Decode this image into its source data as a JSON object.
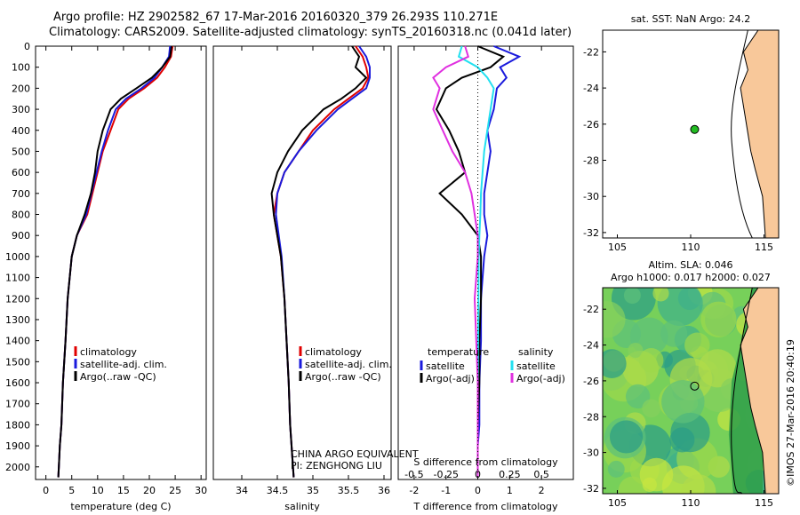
{
  "header": {
    "line1": "Argo profile: HZ 2902582_67 17-Mar-2016 20160320_379 26.293S 110.271E",
    "line2": "Climatology: CARS2009. Satellite-adjusted climatology: synTS_20160318.nc (0.041d later)"
  },
  "colors": {
    "climatology": "#e00000",
    "satellite": "#1a1adc",
    "argo": "#000000",
    "sal_satellite": "#22e0f0",
    "sal_argo": "#e030e0",
    "land": "#f8c89a",
    "marker": "#22bb22"
  },
  "chart_data": [
    {
      "id": "temperature",
      "type": "line",
      "xlabel": "temperature (deg C)",
      "ylabel": "",
      "xlim": [
        -2,
        31
      ],
      "ylim": [
        2060,
        0
      ],
      "y_reversed": true,
      "xticks": [
        0,
        5,
        10,
        15,
        20,
        25,
        30
      ],
      "yticks": [
        0,
        100,
        200,
        300,
        400,
        500,
        600,
        700,
        800,
        900,
        1000,
        1100,
        1200,
        1300,
        1400,
        1500,
        1600,
        1700,
        1800,
        1900,
        2000
      ],
      "legend": [
        "climatology",
        "satellite-adj. clim.",
        "Argo(..raw -QC)"
      ],
      "legend_position": "lower-left",
      "series": [
        {
          "name": "climatology",
          "color": "#e00000",
          "x": [
            24.5,
            24.2,
            23,
            21.5,
            19,
            16,
            14,
            12.5,
            11,
            10,
            9,
            8,
            6,
            5,
            4.2,
            3.8,
            3.3,
            3,
            2.7,
            2.5,
            2.4
          ],
          "y": [
            0,
            50,
            100,
            150,
            200,
            250,
            300,
            400,
            500,
            600,
            700,
            800,
            900,
            1000,
            1200,
            1400,
            1600,
            1800,
            1900,
            2000,
            2050
          ]
        },
        {
          "name": "satellite-adj. clim.",
          "color": "#1a1adc",
          "x": [
            24,
            23.8,
            22.5,
            21,
            18.5,
            15.5,
            13.5,
            12,
            10.8,
            9.8,
            8.8,
            7.8,
            6,
            5,
            4.2,
            3.8,
            3.3,
            3,
            2.7,
            2.5,
            2.4
          ],
          "y": [
            0,
            50,
            100,
            150,
            200,
            250,
            300,
            400,
            500,
            600,
            700,
            800,
            900,
            1000,
            1200,
            1400,
            1600,
            1800,
            1900,
            2000,
            2050
          ]
        },
        {
          "name": "Argo(..raw -QC)",
          "color": "#000000",
          "x": [
            24.3,
            24,
            22.5,
            20.5,
            17.5,
            14.5,
            12.5,
            11,
            10,
            9.5,
            8.7,
            7.5,
            6,
            5,
            4.2,
            3.8,
            3.3,
            3,
            2.7,
            2.5,
            2.4
          ],
          "y": [
            0,
            50,
            100,
            150,
            200,
            250,
            300,
            400,
            500,
            600,
            700,
            800,
            900,
            1000,
            1200,
            1400,
            1600,
            1800,
            1900,
            2000,
            2050
          ]
        }
      ]
    },
    {
      "id": "salinity",
      "type": "line",
      "xlabel": "salinity",
      "ylabel": "",
      "xlim": [
        33.6,
        36.1
      ],
      "ylim": [
        2060,
        0
      ],
      "y_reversed": true,
      "xticks": [
        34,
        34.5,
        35,
        35.5,
        36
      ],
      "legend": [
        "climatology",
        "satellite-adj. clim.",
        "Argo(..raw -QC)"
      ],
      "legend_position": "lower-right",
      "annotations": [
        "CHINA ARGO EQUIVALENT",
        "PI: ZENGHONG LIU"
      ],
      "series": [
        {
          "name": "climatology",
          "color": "#e00000",
          "x": [
            35.6,
            35.7,
            35.75,
            35.78,
            35.7,
            35.5,
            35.3,
            35.0,
            34.8,
            34.6,
            34.5,
            34.45,
            34.5,
            34.55,
            34.6,
            34.63,
            34.66,
            34.68,
            34.7,
            34.72,
            34.73
          ],
          "y": [
            0,
            50,
            100,
            150,
            200,
            250,
            300,
            400,
            500,
            600,
            700,
            800,
            900,
            1000,
            1200,
            1400,
            1600,
            1800,
            1900,
            2000,
            2050
          ]
        },
        {
          "name": "satellite-adj. clim.",
          "color": "#1a1adc",
          "x": [
            35.65,
            35.75,
            35.8,
            35.8,
            35.75,
            35.55,
            35.35,
            35.05,
            34.8,
            34.6,
            34.5,
            34.48,
            34.52,
            34.56,
            34.6,
            34.63,
            34.66,
            34.68,
            34.7,
            34.72,
            34.73
          ],
          "y": [
            0,
            50,
            100,
            150,
            200,
            250,
            300,
            400,
            500,
            600,
            700,
            800,
            900,
            1000,
            1200,
            1400,
            1600,
            1800,
            1900,
            2000,
            2050
          ]
        },
        {
          "name": "Argo(..raw -QC)",
          "color": "#000000",
          "x": [
            35.55,
            35.65,
            35.6,
            35.75,
            35.6,
            35.4,
            35.15,
            34.85,
            34.65,
            34.5,
            34.42,
            34.45,
            34.5,
            34.55,
            34.6,
            34.63,
            34.66,
            34.68,
            34.7,
            34.72,
            34.73
          ],
          "y": [
            0,
            50,
            100,
            150,
            200,
            250,
            300,
            400,
            500,
            600,
            700,
            800,
            900,
            1000,
            1200,
            1400,
            1600,
            1800,
            1900,
            2000,
            2050
          ]
        }
      ]
    },
    {
      "id": "difference",
      "type": "line",
      "xlabel": "T difference from climatology",
      "xlabel_top": "S difference from climatology",
      "xlim": [
        -2.5,
        3
      ],
      "ylim": [
        2060,
        0
      ],
      "y_reversed": true,
      "xticks": [
        -2,
        -1,
        0,
        1,
        2
      ],
      "sticks": [
        -0.5,
        -0.25,
        0,
        0.25,
        0.5
      ],
      "legend_left_title": "temperature",
      "legend_right_title": "salinity",
      "legend_left": [
        "satellite",
        "Argo(-adj)"
      ],
      "legend_right": [
        "satellite",
        "Argo(-adj)"
      ],
      "series": [
        {
          "name": "temperature satellite",
          "color": "#1a1adc",
          "x": [
            0.5,
            1.3,
            0.7,
            0.9,
            0.6,
            0.5,
            0.3,
            0.4,
            0.3,
            0.2,
            0.2,
            0.3,
            0.2,
            0.1,
            0.1,
            0.05,
            0.05,
            0,
            0,
            0
          ],
          "y": [
            0,
            50,
            100,
            150,
            200,
            300,
            400,
            500,
            600,
            700,
            800,
            900,
            1000,
            1200,
            1400,
            1600,
            1800,
            1900,
            2000,
            2050
          ]
        },
        {
          "name": "temperature Argo(-adj)",
          "color": "#000000",
          "x": [
            0,
            0.8,
            0.4,
            -0.5,
            -1,
            -1.3,
            -0.9,
            -0.6,
            -0.4,
            -1.2,
            -0.5,
            0,
            0.1,
            0.1,
            0.05,
            0.05,
            0,
            0,
            0,
            0
          ],
          "y": [
            0,
            50,
            100,
            150,
            200,
            300,
            400,
            500,
            600,
            700,
            800,
            900,
            1000,
            1200,
            1400,
            1600,
            1800,
            1900,
            2000,
            2050
          ]
        },
        {
          "name": "salinity satellite",
          "color": "#22e0f0",
          "x": [
            -0.5,
            -0.6,
            0,
            0.3,
            0.5,
            0.4,
            0.3,
            0.2,
            0.15,
            0.1,
            0.08,
            0.05,
            0.03,
            0.02,
            0.01,
            0,
            0,
            0,
            0,
            0
          ],
          "y": [
            0,
            50,
            100,
            150,
            200,
            300,
            400,
            500,
            600,
            700,
            800,
            900,
            1000,
            1200,
            1400,
            1600,
            1800,
            1900,
            2000,
            2050
          ]
        },
        {
          "name": "salinity Argo(-adj)",
          "color": "#e030e0",
          "x": [
            -0.4,
            -0.3,
            -1.0,
            -1.4,
            -1.2,
            -1.4,
            -1.1,
            -0.8,
            -0.4,
            -0.2,
            -0.1,
            0,
            0,
            -0.1,
            -0.05,
            0,
            0,
            0,
            0,
            0
          ],
          "y": [
            0,
            50,
            100,
            150,
            200,
            300,
            400,
            500,
            600,
            700,
            800,
            900,
            1000,
            1200,
            1400,
            1600,
            1800,
            1900,
            2000,
            2050
          ]
        }
      ]
    },
    {
      "id": "sst_map",
      "type": "map",
      "title": "sat. SST: NaN Argo: 24.2",
      "xlim": [
        104,
        116
      ],
      "ylim": [
        -32.3,
        -20.8
      ],
      "xticks": [
        105,
        110,
        115
      ],
      "yticks": [
        -22,
        -24,
        -26,
        -28,
        -30,
        -32
      ],
      "point": {
        "x": 110.271,
        "y": -26.293
      }
    },
    {
      "id": "sla_map",
      "type": "map",
      "title_line1": "Altim. SLA: 0.046",
      "title_line2": "Argo h1000: 0.017 h2000: 0.027",
      "side_label": "©IMOS 27-Mar-2016 20:40:19",
      "xlim": [
        104,
        116
      ],
      "ylim": [
        -32.3,
        -20.8
      ],
      "xticks": [
        105,
        110,
        115
      ],
      "yticks": [
        -22,
        -24,
        -26,
        -28,
        -30,
        -32
      ],
      "point": {
        "x": 110.271,
        "y": -26.293
      }
    }
  ]
}
